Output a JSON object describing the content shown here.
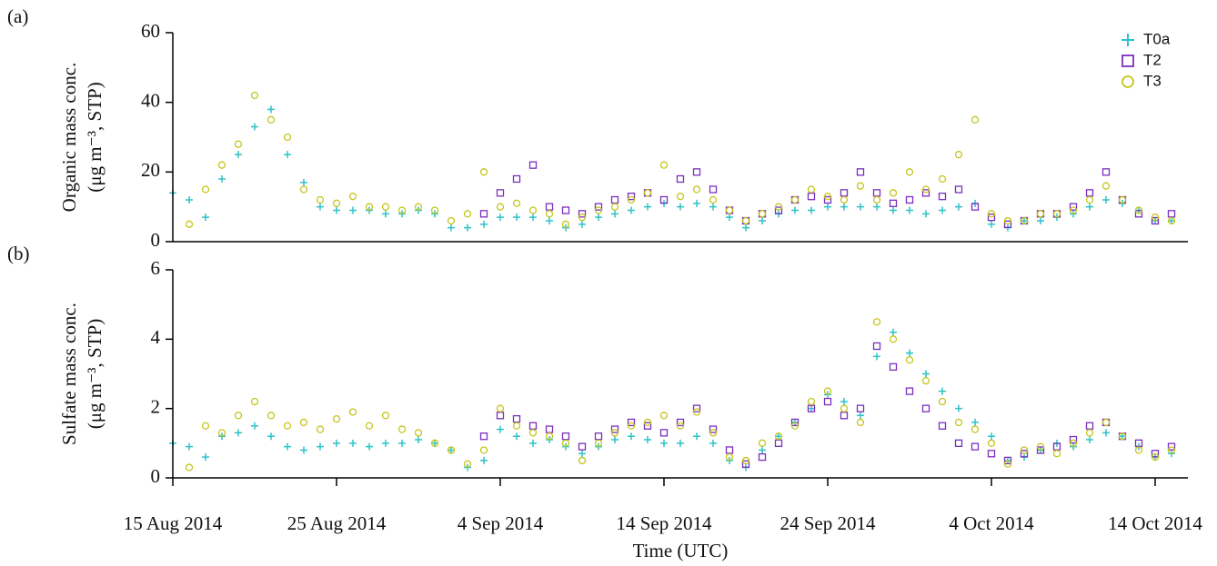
{
  "chart_data": [
    {
      "type": "scatter",
      "panel_label": "(a)",
      "ylabel": [
        "Organic mass conc.",
        "(μg m⁻³, STP)"
      ],
      "x": [
        "2014-08-15",
        "2014-08-16",
        "2014-08-17",
        "2014-08-18",
        "2014-08-19",
        "2014-08-20",
        "2014-08-21",
        "2014-08-22",
        "2014-08-23",
        "2014-08-24",
        "2014-08-25",
        "2014-08-26",
        "2014-08-27",
        "2014-08-28",
        "2014-08-29",
        "2014-08-30",
        "2014-08-31",
        "2014-09-01",
        "2014-09-02",
        "2014-09-03",
        "2014-09-04",
        "2014-09-05",
        "2014-09-06",
        "2014-09-07",
        "2014-09-08",
        "2014-09-09",
        "2014-09-10",
        "2014-09-11",
        "2014-09-12",
        "2014-09-13",
        "2014-09-14",
        "2014-09-15",
        "2014-09-16",
        "2014-09-17",
        "2014-09-18",
        "2014-09-19",
        "2014-09-20",
        "2014-09-21",
        "2014-09-22",
        "2014-09-23",
        "2014-09-24",
        "2014-09-25",
        "2014-09-26",
        "2014-09-27",
        "2014-09-28",
        "2014-09-29",
        "2014-09-30",
        "2014-10-01",
        "2014-10-02",
        "2014-10-03",
        "2014-10-04",
        "2014-10-05",
        "2014-10-06",
        "2014-10-07",
        "2014-10-08",
        "2014-10-09",
        "2014-10-10",
        "2014-10-11",
        "2014-10-12",
        "2014-10-13",
        "2014-10-14",
        "2014-10-15"
      ],
      "series": [
        {
          "name": "T0a",
          "color": "#2cc3c8",
          "marker": "plus",
          "values": [
            14,
            12,
            7,
            18,
            25,
            33,
            38,
            25,
            17,
            10,
            9,
            9,
            9,
            8,
            8,
            9,
            8,
            4,
            4,
            5,
            7,
            7,
            7,
            6,
            4,
            5,
            7,
            8,
            9,
            10,
            11,
            10,
            11,
            10,
            7,
            4,
            6,
            8,
            9,
            9,
            10,
            10,
            10,
            10,
            9,
            9,
            8,
            9,
            10,
            11,
            5,
            4,
            6,
            6,
            7,
            8,
            10,
            12,
            11,
            9,
            6,
            6
          ]
        },
        {
          "name": "T2",
          "color": "#7a2fbd",
          "marker": "square",
          "values": [
            null,
            null,
            null,
            null,
            null,
            null,
            null,
            null,
            null,
            null,
            null,
            null,
            null,
            null,
            null,
            null,
            null,
            null,
            null,
            8,
            14,
            18,
            22,
            10,
            9,
            8,
            10,
            12,
            13,
            14,
            12,
            18,
            20,
            15,
            9,
            6,
            8,
            9,
            12,
            13,
            12,
            14,
            20,
            14,
            11,
            12,
            14,
            13,
            15,
            10,
            7,
            5,
            6,
            8,
            8,
            10,
            14,
            20,
            12,
            8,
            6,
            8
          ]
        },
        {
          "name": "T3",
          "color": "#c6c51c",
          "marker": "circle",
          "values": [
            null,
            5,
            15,
            22,
            28,
            42,
            35,
            30,
            15,
            12,
            11,
            13,
            10,
            10,
            9,
            10,
            9,
            6,
            8,
            20,
            10,
            11,
            9,
            8,
            5,
            7,
            9,
            10,
            12,
            14,
            22,
            13,
            15,
            12,
            9,
            6,
            8,
            10,
            12,
            15,
            13,
            12,
            16,
            12,
            14,
            20,
            15,
            18,
            25,
            35,
            8,
            6,
            6,
            8,
            8,
            9,
            12,
            16,
            12,
            9,
            7,
            6
          ]
        }
      ],
      "xlim": [
        "2014-08-15",
        "2014-10-16"
      ],
      "ylim": [
        0,
        60
      ],
      "yticks": [
        0,
        20,
        40,
        60
      ],
      "legend": "upper right"
    },
    {
      "type": "scatter",
      "panel_label": "(b)",
      "ylabel": [
        "Sulfate mass conc.",
        "(μg m⁻³, STP)"
      ],
      "xlabel": "Time (UTC)",
      "x": [
        "2014-08-15",
        "2014-08-16",
        "2014-08-17",
        "2014-08-18",
        "2014-08-19",
        "2014-08-20",
        "2014-08-21",
        "2014-08-22",
        "2014-08-23",
        "2014-08-24",
        "2014-08-25",
        "2014-08-26",
        "2014-08-27",
        "2014-08-28",
        "2014-08-29",
        "2014-08-30",
        "2014-08-31",
        "2014-09-01",
        "2014-09-02",
        "2014-09-03",
        "2014-09-04",
        "2014-09-05",
        "2014-09-06",
        "2014-09-07",
        "2014-09-08",
        "2014-09-09",
        "2014-09-10",
        "2014-09-11",
        "2014-09-12",
        "2014-09-13",
        "2014-09-14",
        "2014-09-15",
        "2014-09-16",
        "2014-09-17",
        "2014-09-18",
        "2014-09-19",
        "2014-09-20",
        "2014-09-21",
        "2014-09-22",
        "2014-09-23",
        "2014-09-24",
        "2014-09-25",
        "2014-09-26",
        "2014-09-27",
        "2014-09-28",
        "2014-09-29",
        "2014-09-30",
        "2014-10-01",
        "2014-10-02",
        "2014-10-03",
        "2014-10-04",
        "2014-10-05",
        "2014-10-06",
        "2014-10-07",
        "2014-10-08",
        "2014-10-09",
        "2014-10-10",
        "2014-10-11",
        "2014-10-12",
        "2014-10-13",
        "2014-10-14",
        "2014-10-15"
      ],
      "series": [
        {
          "color": "#2cc3c8",
          "marker": "plus",
          "values": [
            1.0,
            0.9,
            0.6,
            1.2,
            1.3,
            1.5,
            1.2,
            0.9,
            0.8,
            0.9,
            1.0,
            1.0,
            0.9,
            1.0,
            1.0,
            1.1,
            1.0,
            0.8,
            0.3,
            0.5,
            1.4,
            1.2,
            1.0,
            1.1,
            0.9,
            0.7,
            0.9,
            1.1,
            1.2,
            1.1,
            1.0,
            1.0,
            1.2,
            1.0,
            0.5,
            0.3,
            0.8,
            1.2,
            1.6,
            2.0,
            2.4,
            2.2,
            1.8,
            3.5,
            4.2,
            3.6,
            3.0,
            2.5,
            2.0,
            1.6,
            1.2,
            0.5,
            0.6,
            0.8,
            1.0,
            0.9,
            1.1,
            1.3,
            1.2,
            0.9,
            0.6,
            0.7
          ]
        },
        {
          "color": "#7a2fbd",
          "marker": "square",
          "values": [
            null,
            null,
            null,
            null,
            null,
            null,
            null,
            null,
            null,
            null,
            null,
            null,
            null,
            null,
            null,
            null,
            null,
            null,
            null,
            1.2,
            1.8,
            1.7,
            1.5,
            1.4,
            1.2,
            0.9,
            1.2,
            1.4,
            1.6,
            1.5,
            1.3,
            1.6,
            2.0,
            1.4,
            0.8,
            0.4,
            0.6,
            1.0,
            1.6,
            2.0,
            2.2,
            1.8,
            2.0,
            3.8,
            3.2,
            2.5,
            2.0,
            1.5,
            1.0,
            0.9,
            0.7,
            0.5,
            0.7,
            0.8,
            0.9,
            1.1,
            1.5,
            1.6,
            1.2,
            1.0,
            0.7,
            0.9
          ]
        },
        {
          "color": "#c6c51c",
          "marker": "circle",
          "values": [
            null,
            0.3,
            1.5,
            1.3,
            1.8,
            2.2,
            1.8,
            1.5,
            1.6,
            1.4,
            1.7,
            1.9,
            1.5,
            1.8,
            1.4,
            1.3,
            1.0,
            0.8,
            0.4,
            0.8,
            2.0,
            1.5,
            1.3,
            1.2,
            1.0,
            0.5,
            1.0,
            1.3,
            1.5,
            1.6,
            1.8,
            1.5,
            1.9,
            1.3,
            0.6,
            0.5,
            1.0,
            1.2,
            1.5,
            2.2,
            2.5,
            2.0,
            1.6,
            4.5,
            4.0,
            3.4,
            2.8,
            2.2,
            1.6,
            1.4,
            1.0,
            0.4,
            0.8,
            0.9,
            0.7,
            1.0,
            1.3,
            1.6,
            1.2,
            0.8,
            0.6,
            0.8
          ]
        }
      ],
      "xlim": [
        "2014-08-15",
        "2014-10-16"
      ],
      "ylim": [
        0,
        6
      ],
      "yticks": [
        0,
        2,
        4,
        6
      ],
      "xticks": [
        {
          "value": "2014-08-15",
          "label": "15 Aug 2014"
        },
        {
          "value": "2014-08-25",
          "label": "25 Aug 2014"
        },
        {
          "value": "2014-09-04",
          "label": "4 Sep 2014"
        },
        {
          "value": "2014-09-14",
          "label": "14 Sep 2014"
        },
        {
          "value": "2014-09-24",
          "label": "24 Sep 2014"
        },
        {
          "value": "2014-10-04",
          "label": "4 Oct 2014"
        },
        {
          "value": "2014-10-14",
          "label": "14 Oct 2014"
        }
      ]
    }
  ]
}
